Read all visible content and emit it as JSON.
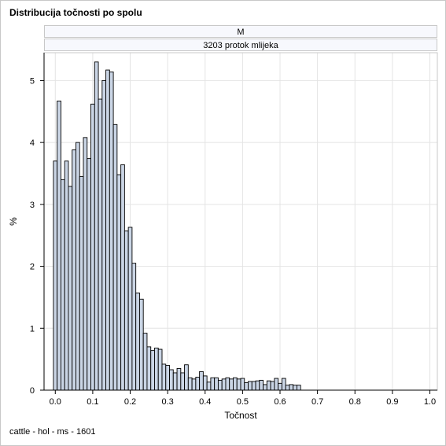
{
  "title": "Distribucija točnosti po spolu",
  "panel": {
    "sex": "M",
    "trait": "3203 protok mlijeka"
  },
  "footnote": "cattle - hol - ms - 1601",
  "chart_data": {
    "type": "bar",
    "subtype": "histogram",
    "xlabel": "Točnost",
    "ylabel": "%",
    "xlim": [
      -0.03,
      1.02
    ],
    "ylim": [
      0,
      5.45
    ],
    "xticks": [
      "0.0",
      "0.1",
      "0.2",
      "0.3",
      "0.4",
      "0.5",
      "0.6",
      "0.7",
      "0.8",
      "0.9",
      "1.0"
    ],
    "xtick_values": [
      0.0,
      0.1,
      0.2,
      0.3,
      0.4,
      0.5,
      0.6,
      0.7,
      0.8,
      0.9,
      1.0
    ],
    "yticks": [
      "0",
      "1",
      "2",
      "3",
      "4",
      "5"
    ],
    "ytick_values": [
      0,
      1,
      2,
      3,
      4,
      5
    ],
    "grid": true,
    "bin_width": 0.01,
    "bin_start": -0.005,
    "values": [
      3.7,
      4.67,
      3.4,
      3.7,
      3.29,
      3.88,
      4.0,
      3.45,
      4.08,
      3.74,
      4.62,
      5.3,
      4.7,
      5.0,
      5.17,
      5.14,
      4.29,
      3.48,
      3.64,
      2.57,
      2.63,
      2.05,
      1.57,
      1.47,
      0.92,
      0.7,
      0.64,
      0.68,
      0.66,
      0.42,
      0.4,
      0.33,
      0.28,
      0.35,
      0.28,
      0.41,
      0.2,
      0.18,
      0.21,
      0.3,
      0.23,
      0.13,
      0.2,
      0.2,
      0.16,
      0.18,
      0.2,
      0.18,
      0.2,
      0.18,
      0.19,
      0.12,
      0.14,
      0.14,
      0.15,
      0.16,
      0.09,
      0.15,
      0.14,
      0.19,
      0.11,
      0.19,
      0.08,
      0.09,
      0.08,
      0.08
    ],
    "bar_fill": "#cad5e5",
    "bar_stroke": "#000000"
  }
}
